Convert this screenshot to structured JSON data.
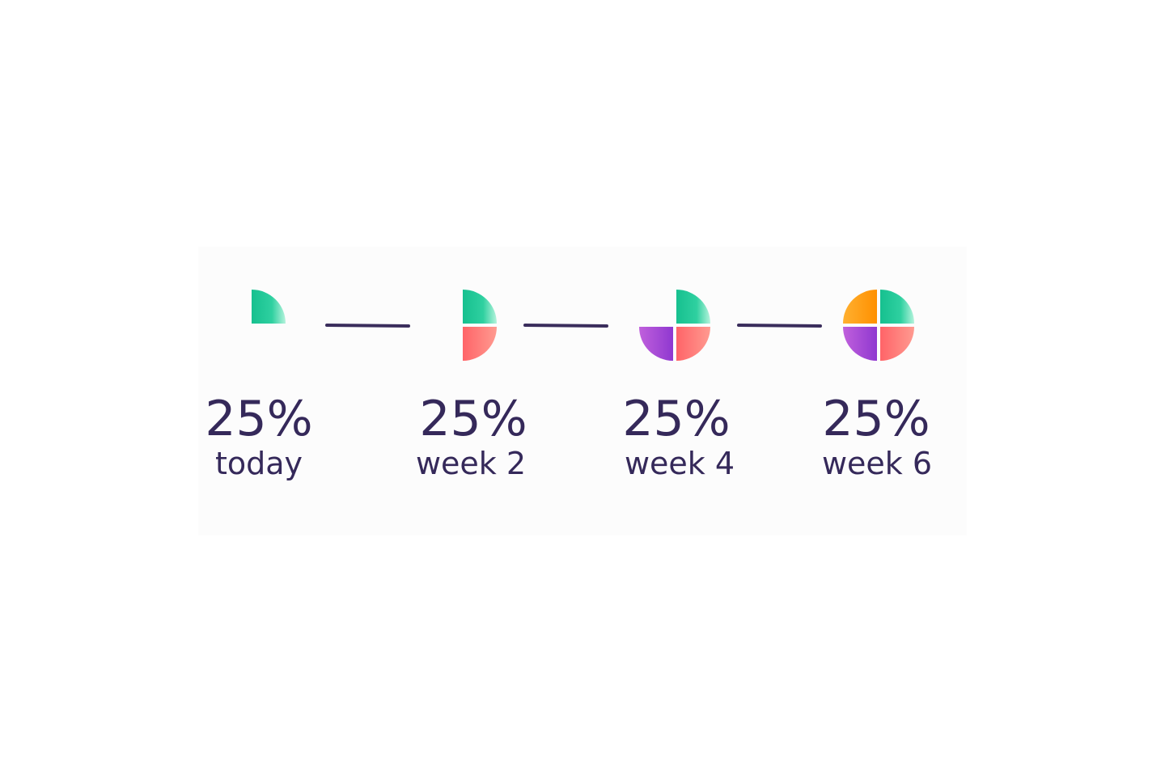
{
  "steps": [
    {
      "value": "25%",
      "label": "today"
    },
    {
      "value": "25%",
      "label": "week 2"
    },
    {
      "value": "25%",
      "label": "week 4"
    },
    {
      "value": "25%",
      "label": "week 6"
    }
  ]
}
